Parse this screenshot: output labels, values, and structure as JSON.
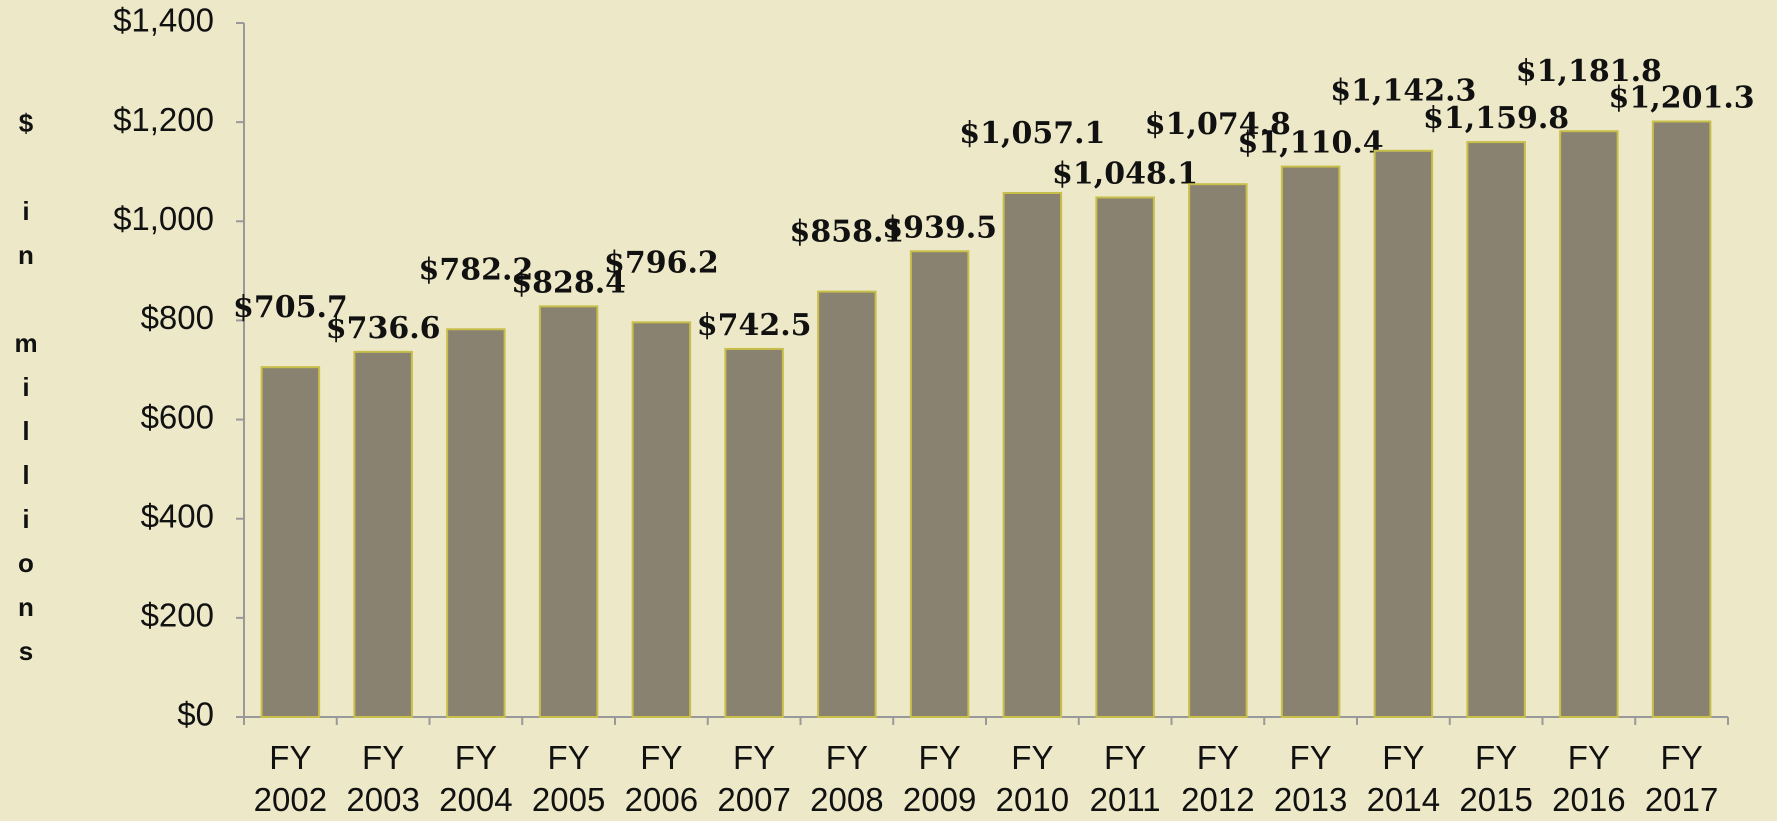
{
  "chart_data": {
    "type": "bar",
    "y_label": "$ in millions",
    "categories": [
      "FY 2002",
      "FY 2003",
      "FY 2004",
      "FY 2005",
      "FY 2006",
      "FY 2007",
      "FY 2008",
      "FY 2009",
      "FY 2010",
      "FY 2011",
      "FY 2012",
      "FY 2013",
      "FY 2014",
      "FY 2015",
      "FY 2016",
      "FY 2017"
    ],
    "values": [
      705.7,
      736.6,
      782.2,
      828.4,
      796.2,
      742.5,
      858.1,
      939.5,
      1057.1,
      1048.1,
      1074.8,
      1110.4,
      1142.3,
      1159.8,
      1181.8,
      1201.3
    ],
    "value_labels": [
      "$705.7",
      "$736.6",
      "$782.2",
      "$828.4",
      "$796.2",
      "$742.5",
      "$858.1",
      "$939.5",
      "$1,057.1",
      "$1,048.1",
      "$1,074.8",
      "$1,110.4",
      "$1,142.3",
      "$1,159.8",
      "$1,181.8",
      "$1,201.3"
    ],
    "color": "#8a8270",
    "ylim": [
      0,
      1400
    ],
    "yticks": [
      {
        "value": 0,
        "label": "$0"
      },
      {
        "value": 200,
        "label": "$200"
      },
      {
        "value": 400,
        "label": "$400"
      },
      {
        "value": 600,
        "label": "$600"
      },
      {
        "value": 800,
        "label": "$800"
      },
      {
        "value": 1000,
        "label": "$1,000"
      },
      {
        "value": 1200,
        "label": "$1,200"
      },
      {
        "value": 1400,
        "label": "$1,400"
      }
    ],
    "grid": false
  }
}
